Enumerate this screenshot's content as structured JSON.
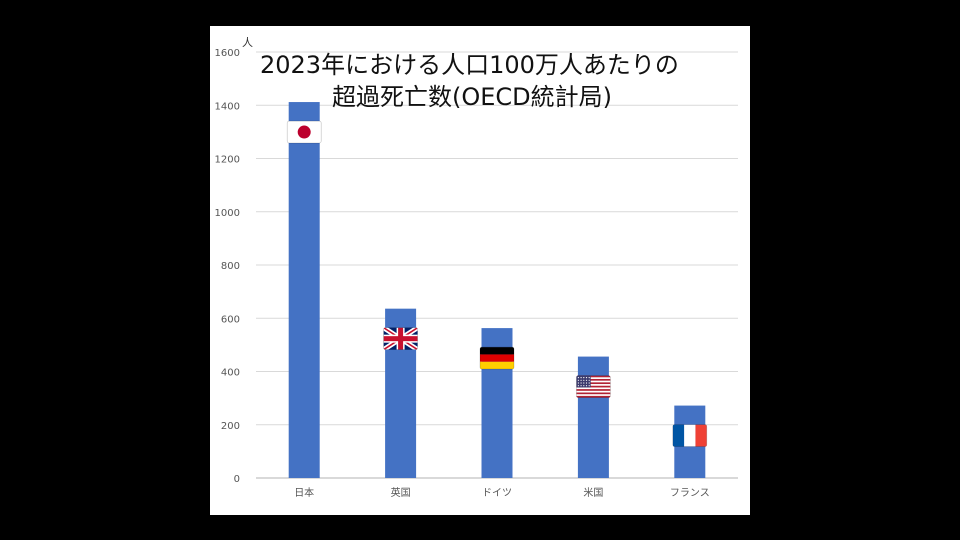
{
  "colors": {
    "background": "#000000",
    "panel": "#ffffff",
    "bar": "#4472c4",
    "grid": "#d9d9d9",
    "axis": "#b3b3b3",
    "tick_text": "#555555"
  },
  "chart_data": {
    "type": "bar",
    "title": "2023年における人口100万人あたりの超過死亡数(OECD統計局)",
    "title_lines": [
      "2023年における人口100万人あたりの",
      "超過死亡数(OECD統計局)"
    ],
    "ylabel": "人",
    "xlabel": "",
    "categories": [
      "日本",
      "英国",
      "ドイツ",
      "米国",
      "フランス"
    ],
    "flags": [
      "flag-japan-icon",
      "flag-uk-icon",
      "flag-germany-icon",
      "flag-us-icon",
      "flag-france-icon"
    ],
    "values": [
      1412,
      636,
      563,
      456,
      272
    ],
    "ylim": [
      0,
      1600
    ],
    "yticks": [
      0,
      200,
      400,
      600,
      800,
      1000,
      1200,
      1400,
      1600
    ],
    "grid": true,
    "legend": "none"
  }
}
